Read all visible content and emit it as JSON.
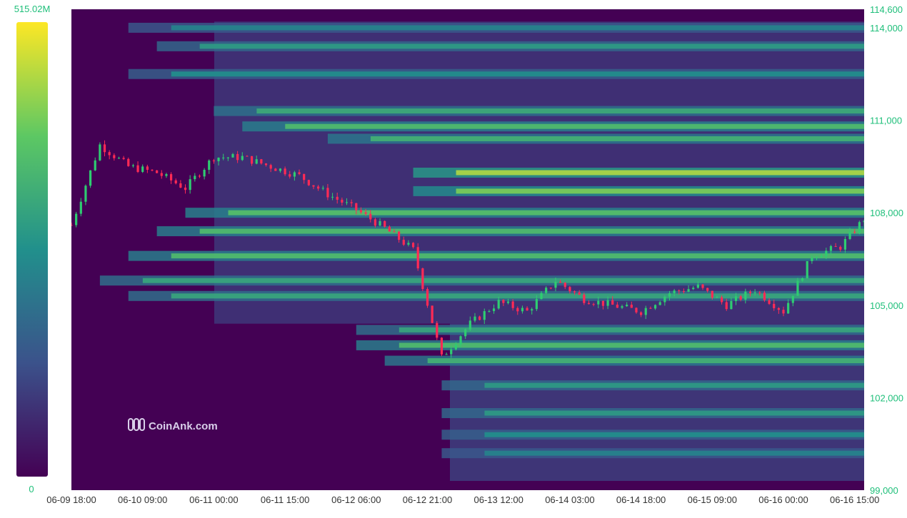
{
  "colorbar": {
    "max_label": "515.02M",
    "min_label": "0",
    "colors": [
      "#440154",
      "#3b528b",
      "#21908c",
      "#5dc863",
      "#fde725"
    ]
  },
  "watermark": {
    "text": "CoinAnk.com",
    "icon": "coinank-logo-icon"
  },
  "colors": {
    "up": "#2ecc71",
    "down": "#ff2a55",
    "plot_bg": "#440154"
  },
  "chart_data": {
    "type": "heatmap",
    "title": "",
    "xlabel": "",
    "ylabel": "",
    "y_axis_side": "right",
    "ylim": [
      99000,
      114600
    ],
    "y_ticks": [
      99000,
      102000,
      105000,
      108000,
      111000,
      114000,
      114600
    ],
    "y_tick_labels": [
      "99,000",
      "102,000",
      "105,000",
      "108,000",
      "111,000",
      "114,000",
      "114,600"
    ],
    "x_start": "06-09 18:00",
    "x_end": "06-16 17:00",
    "x_ticks": [
      "06-09 18:00",
      "06-10 09:00",
      "06-11 00:00",
      "06-11 15:00",
      "06-12 06:00",
      "06-12 21:00",
      "06-13 12:00",
      "06-14 03:00",
      "06-14 18:00",
      "06-15 09:00",
      "06-16 00:00",
      "06-16 15:00"
    ],
    "price_series": {
      "type": "candlestick",
      "times": [
        "06-09 18:00",
        "06-10 00:00",
        "06-10 06:00",
        "06-10 12:00",
        "06-10 18:00",
        "06-11 00:00",
        "06-11 06:00",
        "06-11 12:00",
        "06-11 18:00",
        "06-12 00:00",
        "06-12 06:00",
        "06-12 12:00",
        "06-12 18:00",
        "06-13 00:00",
        "06-13 06:00",
        "06-13 12:00",
        "06-13 18:00",
        "06-14 00:00",
        "06-14 06:00",
        "06-14 12:00",
        "06-14 18:00",
        "06-15 00:00",
        "06-15 06:00",
        "06-15 12:00",
        "06-15 18:00",
        "06-16 00:00",
        "06-16 06:00",
        "06-16 12:00",
        "06-16 17:00"
      ],
      "prices": [
        107600,
        110200,
        109500,
        109300,
        108800,
        109800,
        109800,
        109500,
        109200,
        108600,
        108100,
        107500,
        106800,
        103300,
        104400,
        105100,
        104800,
        105800,
        105200,
        105000,
        104800,
        105400,
        105600,
        105000,
        105500,
        104800,
        106600,
        106900,
        107800
      ]
    },
    "liquidity_bands": [
      {
        "price": 100200,
        "from": "06-13 00:00",
        "intensity": 0.45
      },
      {
        "price": 100800,
        "from": "06-13 00:00",
        "intensity": 0.5
      },
      {
        "price": 101500,
        "from": "06-13 00:00",
        "intensity": 0.55
      },
      {
        "price": 102400,
        "from": "06-13 00:00",
        "intensity": 0.55
      },
      {
        "price": 103200,
        "from": "06-12 12:00",
        "intensity": 0.65
      },
      {
        "price": 103700,
        "from": "06-12 06:00",
        "intensity": 0.7
      },
      {
        "price": 104200,
        "from": "06-12 06:00",
        "intensity": 0.6
      },
      {
        "price": 105300,
        "from": "06-10 06:00",
        "intensity": 0.6
      },
      {
        "price": 105800,
        "from": "06-10 00:00",
        "intensity": 0.6
      },
      {
        "price": 106600,
        "from": "06-10 06:00",
        "intensity": 0.7
      },
      {
        "price": 107400,
        "from": "06-10 12:00",
        "intensity": 0.7
      },
      {
        "price": 108000,
        "from": "06-10 18:00",
        "intensity": 0.72
      },
      {
        "price": 108700,
        "from": "06-12 18:00",
        "intensity": 0.8
      },
      {
        "price": 109300,
        "from": "06-12 18:00",
        "intensity": 0.88
      },
      {
        "price": 110400,
        "from": "06-12 00:00",
        "intensity": 0.65
      },
      {
        "price": 110800,
        "from": "06-11 06:00",
        "intensity": 0.7
      },
      {
        "price": 111300,
        "from": "06-11 00:00",
        "intensity": 0.62
      },
      {
        "price": 112500,
        "from": "06-10 06:00",
        "intensity": 0.5
      },
      {
        "price": 113400,
        "from": "06-10 12:00",
        "intensity": 0.55
      },
      {
        "price": 114000,
        "from": "06-10 06:00",
        "intensity": 0.45
      }
    ]
  }
}
